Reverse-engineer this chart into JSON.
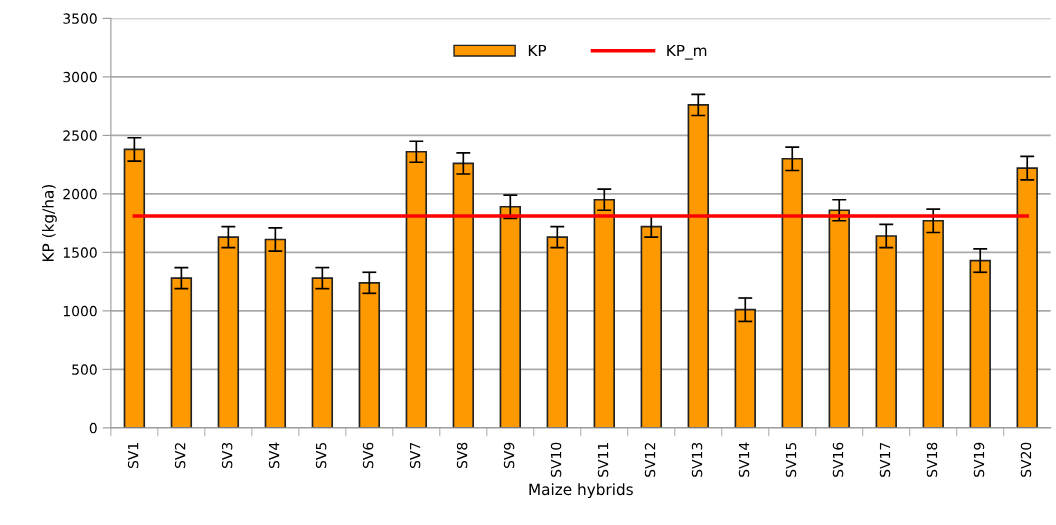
{
  "chart_data": {
    "type": "bar",
    "xlabel": "Maize hybrids",
    "ylabel": "KP (kg/ha)",
    "categories": [
      "SV1",
      "SV2",
      "SV3",
      "SV4",
      "SV5",
      "SV6",
      "SV7",
      "SV8",
      "SV9",
      "SV10",
      "SV11",
      "SV12",
      "SV13",
      "SV14",
      "SV15",
      "SV16",
      "SV17",
      "SV18",
      "SV19",
      "SV20"
    ],
    "series": [
      {
        "name": "KP",
        "color": "#ff9900",
        "values": [
          2380,
          1280,
          1630,
          1610,
          1280,
          1240,
          2360,
          2260,
          1890,
          1630,
          1950,
          1720,
          2760,
          1010,
          2300,
          1860,
          1640,
          1770,
          1430,
          2220
        ],
        "errors": [
          100,
          90,
          90,
          100,
          90,
          90,
          90,
          90,
          100,
          90,
          90,
          90,
          90,
          100,
          100,
          90,
          100,
          100,
          100,
          100
        ]
      },
      {
        "name": "KP_m",
        "type": "line",
        "color": "#ff0000",
        "values": [
          1810,
          1810,
          1810,
          1810,
          1810,
          1810,
          1810,
          1810,
          1810,
          1810,
          1810,
          1810,
          1810,
          1810,
          1810,
          1810,
          1810,
          1810,
          1810,
          1810
        ]
      }
    ],
    "ylim": [
      0,
      3500
    ],
    "yticks": [
      0,
      500,
      1000,
      1500,
      2000,
      2500,
      3000,
      3500
    ],
    "grid": "y",
    "legend": "top",
    "marker": "none",
    "line_style": "solid"
  }
}
